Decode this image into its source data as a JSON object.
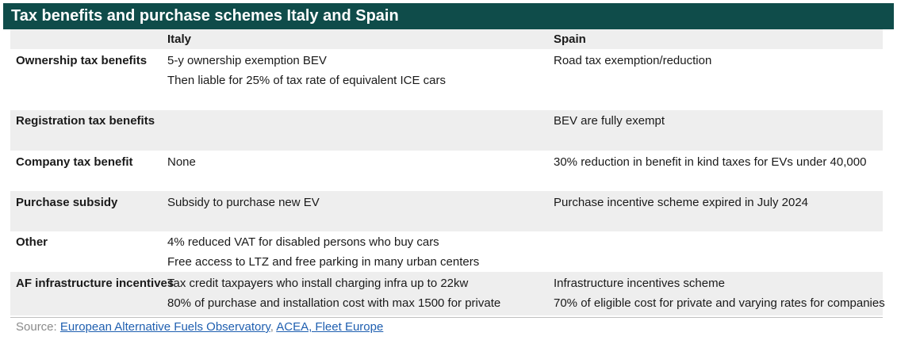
{
  "title": "Tax benefits and purchase schemes Italy and Spain",
  "columns": {
    "italy": "Italy",
    "spain": "Spain"
  },
  "rows": [
    {
      "label": "Ownership tax benefits",
      "italy": [
        "5-y ownership exemption BEV",
        "Then liable for 25% of tax rate of equivalent ICE cars"
      ],
      "spain": [
        "Road tax exemption/reduction"
      ]
    },
    {
      "label": "Registration tax benefits",
      "italy": [],
      "spain": [
        "BEV are fully exempt"
      ]
    },
    {
      "label": "Company tax benefit",
      "italy": [
        "None"
      ],
      "spain": [
        "30% reduction in benefit in kind taxes for EVs under 40,000"
      ]
    },
    {
      "label": "Purchase subsidy",
      "italy": [
        "Subsidy to purchase new EV"
      ],
      "spain": [
        "Purchase incentive scheme expired in July 2024"
      ]
    },
    {
      "label": "Other",
      "italy": [
        "4% reduced VAT for disabled persons who buy cars",
        "Free access to LTZ and free parking in many urban centers"
      ],
      "spain": []
    },
    {
      "label": "AF infrastructure incentives",
      "italy": [
        "Tax credit taxpayers who install charging infra up to 22kw",
        "80% of purchase and installation cost with max 1500 for private"
      ],
      "spain": [
        "Infrastructure incentives scheme",
        "70% of eligible cost for private and varying rates for companies"
      ]
    }
  ],
  "source": {
    "prefix": "Source:",
    "link1": "European Alternative Fuels Observatory",
    "separator": ",",
    "link2": "ACEA, Fleet Europe"
  }
}
